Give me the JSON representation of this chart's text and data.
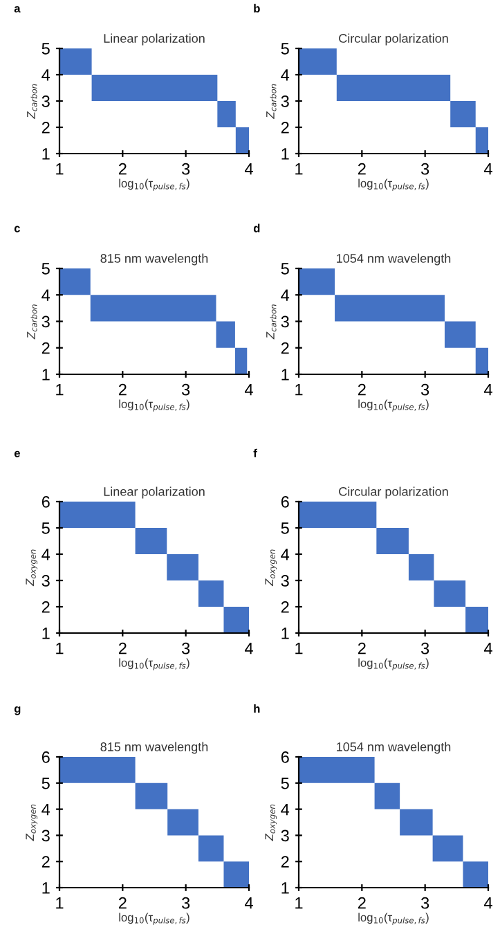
{
  "chart_data": [
    {
      "type": "bar",
      "orientation": "horizontal",
      "title": "Linear polarization",
      "xlabel": "log$_{10}$(τ$_{pulse,fs}$)",
      "ylabel": "Z$_{carbon}$",
      "annotations": [
        "a"
      ],
      "x": [
        4.5,
        3.5,
        2.5,
        1.5
      ],
      "base": [
        1.0,
        1.51,
        3.5,
        3.79
      ],
      "values": [
        0.51,
        1.99,
        0.29,
        0.21
      ],
      "color": "#4472c4",
      "xlim": [
        1,
        4
      ],
      "xticks": [
        1,
        2,
        3,
        4
      ],
      "ylim": [
        1,
        5
      ],
      "yticks": [
        1,
        2,
        3,
        4,
        5
      ],
      "grid": false,
      "legend": false
    },
    {
      "type": "bar",
      "orientation": "horizontal",
      "title": "Circular polarization",
      "xlabel": "log$_{10}$(τ$_{pulse,fs}$)",
      "ylabel": "Z$_{carbon}$",
      "annotations": [
        "b"
      ],
      "x": [
        4.5,
        3.5,
        2.5,
        1.5
      ],
      "base": [
        1.0,
        1.6,
        3.4,
        3.8
      ],
      "values": [
        0.6,
        1.8,
        0.4,
        0.2
      ],
      "color": "#4472c4",
      "xlim": [
        1,
        4
      ],
      "xticks": [
        1,
        2,
        3,
        4
      ],
      "ylim": [
        1,
        5
      ],
      "yticks": [
        1,
        2,
        3,
        4,
        5
      ],
      "grid": false,
      "legend": false
    },
    {
      "type": "bar",
      "orientation": "horizontal",
      "title": "815 nm wavelength",
      "xlabel": "log$_{10}$(τ$_{pulse,fs}$)",
      "ylabel": "Z$_{carbon}$",
      "annotations": [
        "c"
      ],
      "x": [
        4.5,
        3.5,
        2.5,
        1.5
      ],
      "base": [
        1.0,
        1.49,
        3.48,
        3.78
      ],
      "values": [
        0.49,
        1.99,
        0.3,
        0.19
      ],
      "color": "#4472c4",
      "xlim": [
        1,
        4
      ],
      "xticks": [
        1,
        2,
        3,
        4
      ],
      "ylim": [
        1,
        5
      ],
      "yticks": [
        1,
        2,
        3,
        4,
        5
      ],
      "grid": false,
      "legend": false
    },
    {
      "type": "bar",
      "orientation": "horizontal",
      "title": "1054 nm wavelength",
      "xlabel": "log$_{10}$(τ$_{pulse,fs}$)",
      "ylabel": "Z$_{carbon}$",
      "annotations": [
        "d"
      ],
      "x": [
        4.5,
        3.5,
        2.5,
        1.5
      ],
      "base": [
        1.0,
        1.57,
        3.31,
        3.8
      ],
      "values": [
        0.57,
        1.74,
        0.49,
        0.2
      ],
      "color": "#4472c4",
      "xlim": [
        1,
        4
      ],
      "xticks": [
        1,
        2,
        3,
        4
      ],
      "ylim": [
        1,
        5
      ],
      "yticks": [
        1,
        2,
        3,
        4,
        5
      ],
      "grid": false,
      "legend": false
    },
    {
      "type": "bar",
      "orientation": "horizontal",
      "title": "Linear polarization",
      "xlabel": "log$_{10}$(τ$_{pulse,fs}$)",
      "ylabel": "Z$_{oxygen}$",
      "annotations": [
        "e"
      ],
      "x": [
        5.5,
        4.5,
        3.5,
        2.5,
        1.5
      ],
      "base": [
        1.0,
        2.2,
        2.7,
        3.2,
        3.6
      ],
      "values": [
        1.2,
        0.5,
        0.5,
        0.4,
        0.4
      ],
      "color": "#4472c4",
      "xlim": [
        1,
        4
      ],
      "xticks": [
        1,
        2,
        3,
        4
      ],
      "ylim": [
        1,
        6
      ],
      "yticks": [
        1,
        2,
        3,
        4,
        5,
        6
      ],
      "grid": false,
      "legend": false
    },
    {
      "type": "bar",
      "orientation": "horizontal",
      "title": "Circular polarization",
      "xlabel": "log$_{10}$(τ$_{pulse,fs}$)",
      "ylabel": "Z$_{oxygen}$",
      "annotations": [
        "f"
      ],
      "x": [
        5.5,
        4.5,
        3.5,
        2.5,
        1.5
      ],
      "base": [
        1.0,
        2.23,
        2.74,
        3.14,
        3.64
      ],
      "values": [
        1.23,
        0.51,
        0.4,
        0.5,
        0.36
      ],
      "color": "#4472c4",
      "xlim": [
        1,
        4
      ],
      "xticks": [
        1,
        2,
        3,
        4
      ],
      "ylim": [
        1,
        6
      ],
      "yticks": [
        1,
        2,
        3,
        4,
        5,
        6
      ],
      "grid": false,
      "legend": false
    },
    {
      "type": "bar",
      "orientation": "horizontal",
      "title": "815 nm wavelength",
      "xlabel": "log$_{10}$(τ$_{pulse,fs}$)",
      "ylabel": "Z$_{oxygen}$",
      "annotations": [
        "g"
      ],
      "x": [
        5.5,
        4.5,
        3.5,
        2.5,
        1.5
      ],
      "base": [
        1.0,
        2.2,
        2.71,
        3.2,
        3.6
      ],
      "values": [
        1.2,
        0.51,
        0.49,
        0.4,
        0.4
      ],
      "color": "#4472c4",
      "xlim": [
        1,
        4
      ],
      "xticks": [
        1,
        2,
        3,
        4
      ],
      "ylim": [
        1,
        6
      ],
      "yticks": [
        1,
        2,
        3,
        4,
        5,
        6
      ],
      "grid": false,
      "legend": false
    },
    {
      "type": "bar",
      "orientation": "horizontal",
      "title": "1054 nm wavelength",
      "xlabel": "log$_{10}$(τ$_{pulse,fs}$)",
      "ylabel": "Z$_{oxygen}$",
      "annotations": [
        "h"
      ],
      "x": [
        5.5,
        4.5,
        3.5,
        2.5,
        1.5
      ],
      "base": [
        1.0,
        2.2,
        2.6,
        3.12,
        3.6
      ],
      "values": [
        1.2,
        0.4,
        0.52,
        0.48,
        0.4
      ],
      "color": "#4472c4",
      "xlim": [
        1,
        4
      ],
      "xticks": [
        1,
        2,
        3,
        4
      ],
      "ylim": [
        1,
        6
      ],
      "yticks": [
        1,
        2,
        3,
        4,
        5,
        6
      ],
      "grid": false,
      "legend": false
    }
  ]
}
